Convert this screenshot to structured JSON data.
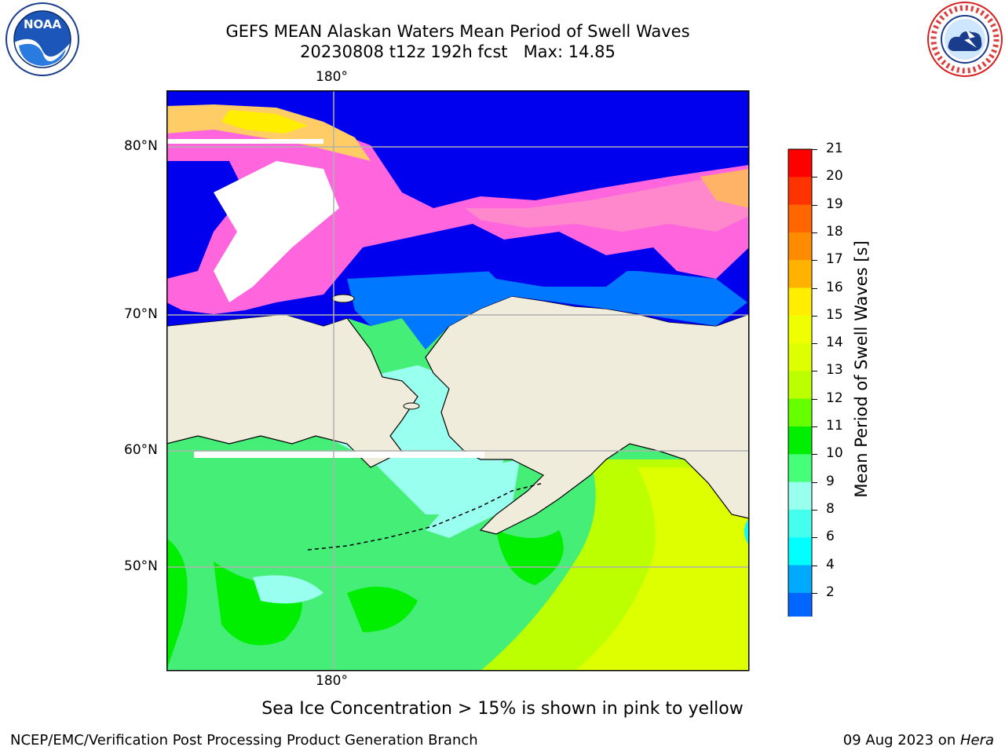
{
  "title": {
    "line1": "GEFS MEAN Alaskan Waters Mean Period of Swell Waves",
    "line2": "20230808 t12z 192h fcst   Max: 14.85"
  },
  "map": {
    "lon_labels": {
      "top": "180°",
      "bottom": "180°"
    },
    "lat_labels": [
      "80°N",
      "70°N",
      "60°N",
      "50°N"
    ],
    "colors": {
      "land": "#efecdc",
      "ocean_deep": "#0000ee",
      "gridline": "#b0b0b0"
    }
  },
  "colorbar": {
    "label": "Mean Period of Swell Waves [s]",
    "ticks": [
      "21",
      "20",
      "19",
      "18",
      "17",
      "16",
      "15",
      "14",
      "13",
      "12",
      "11",
      "10",
      "9",
      "8",
      "6",
      "4",
      "2"
    ],
    "bins": [
      {
        "lo": 20,
        "hi": 21,
        "color": "#ff0000"
      },
      {
        "lo": 19,
        "hi": 20,
        "color": "#ff3300"
      },
      {
        "lo": 18,
        "hi": 19,
        "color": "#ff6600"
      },
      {
        "lo": 17,
        "hi": 18,
        "color": "#ff8c00"
      },
      {
        "lo": 16,
        "hi": 17,
        "color": "#ffb300"
      },
      {
        "lo": 15,
        "hi": 16,
        "color": "#ffee00"
      },
      {
        "lo": 14,
        "hi": 15,
        "color": "#f0ff00"
      },
      {
        "lo": 13,
        "hi": 14,
        "color": "#ddff00"
      },
      {
        "lo": 12,
        "hi": 13,
        "color": "#bbff00"
      },
      {
        "lo": 11,
        "hi": 12,
        "color": "#66ff00"
      },
      {
        "lo": 10,
        "hi": 11,
        "color": "#00ee00"
      },
      {
        "lo": 9,
        "hi": 10,
        "color": "#44ff77"
      },
      {
        "lo": 8,
        "hi": 9,
        "color": "#99ffee"
      },
      {
        "lo": 6,
        "hi": 8,
        "color": "#44ffee"
      },
      {
        "lo": 4,
        "hi": 6,
        "color": "#00ffff"
      },
      {
        "lo": 2,
        "hi": 4,
        "color": "#00aaff"
      },
      {
        "lo": 0,
        "hi": 2,
        "color": "#0066ff"
      }
    ],
    "under_color": "#0000ff"
  },
  "caption": "Sea Ice Concentration > 15% is shown in pink to yellow",
  "footer": {
    "left": "NCEP/EMC/Verification Post Processing Product Generation Branch",
    "right_prefix": "09 Aug 2023 on ",
    "right_host": "Hera"
  },
  "logos": {
    "left": "NOAA",
    "right": "NATIONAL WEATHER SERVICE"
  }
}
